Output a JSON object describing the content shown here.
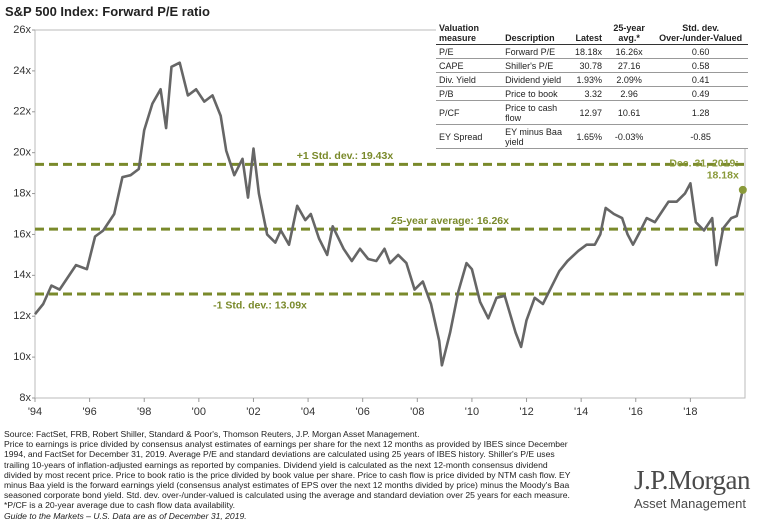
{
  "chart_data": {
    "type": "line",
    "title": "S&P 500 Index: Forward P/E ratio",
    "color": "#666666",
    "x": [
      1994.0,
      1994.3,
      1994.6,
      1994.9,
      1995.2,
      1995.5,
      1995.9,
      1996.2,
      1996.5,
      1996.9,
      1997.2,
      1997.5,
      1997.8,
      1998.0,
      1998.3,
      1998.6,
      1998.8,
      1999.0,
      1999.3,
      1999.6,
      1999.9,
      2000.2,
      2000.5,
      2000.8,
      2001.0,
      2001.3,
      2001.6,
      2001.8,
      2002.0,
      2002.2,
      2002.5,
      2002.8,
      2003.0,
      2003.3,
      2003.6,
      2003.9,
      2004.1,
      2004.4,
      2004.7,
      2004.9,
      2005.3,
      2005.6,
      2005.9,
      2006.2,
      2006.5,
      2006.8,
      2007.0,
      2007.3,
      2007.6,
      2007.9,
      2008.2,
      2008.5,
      2008.8,
      2008.9,
      2009.2,
      2009.5,
      2009.8,
      2010.0,
      2010.3,
      2010.6,
      2010.9,
      2011.2,
      2011.6,
      2011.8,
      2012.0,
      2012.3,
      2012.6,
      2012.9,
      2013.2,
      2013.5,
      2013.9,
      2014.2,
      2014.5,
      2014.7,
      2014.9,
      2015.2,
      2015.5,
      2015.7,
      2015.9,
      2016.1,
      2016.4,
      2016.7,
      2016.9,
      2017.2,
      2017.5,
      2017.8,
      2018.0,
      2018.2,
      2018.5,
      2018.8,
      2018.95,
      2019.2,
      2019.5,
      2019.7,
      2019.92
    ],
    "values": [
      12.1,
      12.6,
      13.5,
      13.3,
      13.9,
      14.5,
      14.3,
      15.9,
      16.2,
      17.0,
      18.8,
      18.9,
      19.2,
      21.1,
      22.4,
      23.1,
      21.2,
      24.2,
      24.4,
      22.8,
      23.1,
      22.5,
      22.8,
      21.8,
      20.1,
      18.9,
      19.7,
      17.8,
      20.2,
      18.0,
      16.0,
      15.6,
      16.2,
      15.5,
      17.4,
      16.7,
      17.0,
      15.8,
      15.0,
      16.4,
      15.3,
      14.7,
      15.3,
      14.8,
      14.7,
      15.3,
      14.6,
      15.0,
      14.6,
      13.3,
      13.7,
      12.6,
      10.8,
      9.6,
      11.2,
      13.2,
      14.6,
      14.3,
      12.7,
      11.9,
      12.9,
      13.0,
      11.2,
      10.5,
      11.8,
      12.9,
      12.6,
      13.4,
      14.2,
      14.7,
      15.2,
      15.5,
      15.5,
      16.0,
      17.3,
      17.0,
      16.8,
      16.0,
      15.5,
      16.0,
      16.8,
      16.6,
      17.0,
      17.6,
      17.6,
      18.0,
      18.5,
      16.6,
      16.2,
      16.8,
      14.5,
      16.3,
      16.8,
      16.9,
      18.18
    ],
    "xlim": [
      1994,
      2020
    ],
    "xticks": [
      {
        "value": 1994,
        "label": "'94"
      },
      {
        "value": 1996,
        "label": "'96"
      },
      {
        "value": 1998,
        "label": "'98"
      },
      {
        "value": 2000,
        "label": "'00"
      },
      {
        "value": 2002,
        "label": "'02"
      },
      {
        "value": 2004,
        "label": "'04"
      },
      {
        "value": 2006,
        "label": "'06"
      },
      {
        "value": 2008,
        "label": "'08"
      },
      {
        "value": 2010,
        "label": "'10"
      },
      {
        "value": 2012,
        "label": "'12"
      },
      {
        "value": 2014,
        "label": "'14"
      },
      {
        "value": 2016,
        "label": "'16"
      },
      {
        "value": 2018,
        "label": "'18"
      }
    ],
    "ylim": [
      8,
      26
    ],
    "yticks": [
      {
        "value": 8,
        "label": "8x"
      },
      {
        "value": 10,
        "label": "10x"
      },
      {
        "value": 12,
        "label": "12x"
      },
      {
        "value": 14,
        "label": "14x"
      },
      {
        "value": 16,
        "label": "16x"
      },
      {
        "value": 18,
        "label": "18x"
      },
      {
        "value": 20,
        "label": "20x"
      },
      {
        "value": 22,
        "label": "22x"
      },
      {
        "value": 24,
        "label": "24x"
      },
      {
        "value": 26,
        "label": "26x"
      }
    ],
    "reference_lines": [
      {
        "value": 19.43,
        "label": "+1 Std. dev.: 19.43x"
      },
      {
        "value": 16.26,
        "label": "25-year average: 16.26x"
      },
      {
        "value": 13.09,
        "label": "-1 Std. dev.: 13.09x"
      }
    ],
    "reference_color": "#7a8a2b",
    "end_annotation": [
      "Dec. 31, 2019:",
      "18.18x"
    ],
    "end_color": "#8a9a3a"
  },
  "table": {
    "columns": [
      "Valuation measure",
      "Description",
      "Latest",
      "25-year avg.*",
      "Std. dev. Over-/under-Valued"
    ],
    "rows": [
      [
        "P/E",
        "Forward P/E",
        "18.18x",
        "16.26x",
        "0.60"
      ],
      [
        "CAPE",
        "Shiller's P/E",
        "30.78",
        "27.16",
        "0.58"
      ],
      [
        "Div. Yield",
        "Dividend yield",
        "1.93%",
        "2.09%",
        "0.41"
      ],
      [
        "P/B",
        "Price to book",
        "3.32",
        "2.96",
        "0.49"
      ],
      [
        "P/CF",
        "Price to cash flow",
        "12.97",
        "10.61",
        "1.28"
      ],
      [
        "EY Spread",
        "EY minus Baa yield",
        "1.65%",
        "-0.03%",
        "-0.85"
      ]
    ]
  },
  "notes": [
    "Source: FactSet, FRB, Robert Shiller, Standard & Poor's, Thomson Reuters, J.P. Morgan Asset Management.",
    "Price to earnings is price divided by consensus analyst estimates of earnings per share for the next 12 months as provided by IBES since December",
    "1994, and FactSet for December 31, 2019. Average P/E and standard deviations are calculated using 25 years of IBES history. Shiller's P/E uses",
    "trailing 10-years of inflation-adjusted earnings as reported by companies. Dividend yield is calculated as the next 12-month consensus dividend",
    "divided by most recent price. Price to book ratio is the price divided by book value per share. Price to cash flow is price divided by NTM cash flow. EY",
    "minus Baa yield is the forward earnings yield (consensus analyst estimates of EPS over the next 12 months divided by price) minus the Moody's Baa",
    "seasoned corporate bond yield. Std. dev. over-/under-valued is calculated using the average and standard deviation over 25 years for each measure.",
    "*P/CF is a 20-year average due to cash flow data availability."
  ],
  "footer": "Guide to the Markets – U.S. Data are as of December 31, 2019.",
  "logo": {
    "name": "J.P.Morgan",
    "sub": "Asset Management"
  }
}
